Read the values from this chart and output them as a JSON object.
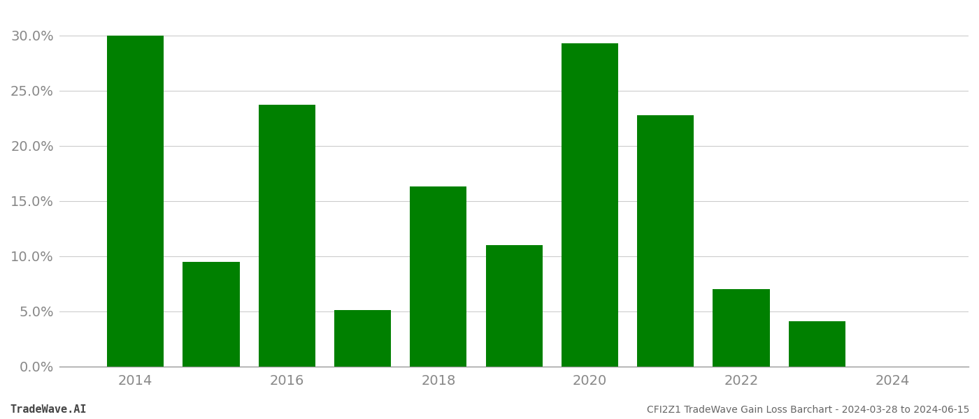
{
  "years": [
    2014,
    2015,
    2016,
    2017,
    2018,
    2019,
    2020,
    2021,
    2022,
    2023,
    2024
  ],
  "values": [
    0.2997,
    0.095,
    0.237,
    0.051,
    0.163,
    0.11,
    0.293,
    0.228,
    0.07,
    0.041,
    0.0
  ],
  "bar_color": "#008000",
  "background_color": "#ffffff",
  "title": "CFI2Z1 TradeWave Gain Loss Barchart - 2024-03-28 to 2024-06-15",
  "watermark": "TradeWave.AI",
  "grid_color": "#cccccc",
  "axis_color": "#999999",
  "ylim": [
    0,
    0.315
  ],
  "yticks": [
    0.0,
    0.05,
    0.1,
    0.15,
    0.2,
    0.25,
    0.3
  ],
  "bar_width": 0.75,
  "figsize": [
    14.0,
    6.0
  ],
  "dpi": 100,
  "xlim": [
    2013.0,
    2025.0
  ]
}
